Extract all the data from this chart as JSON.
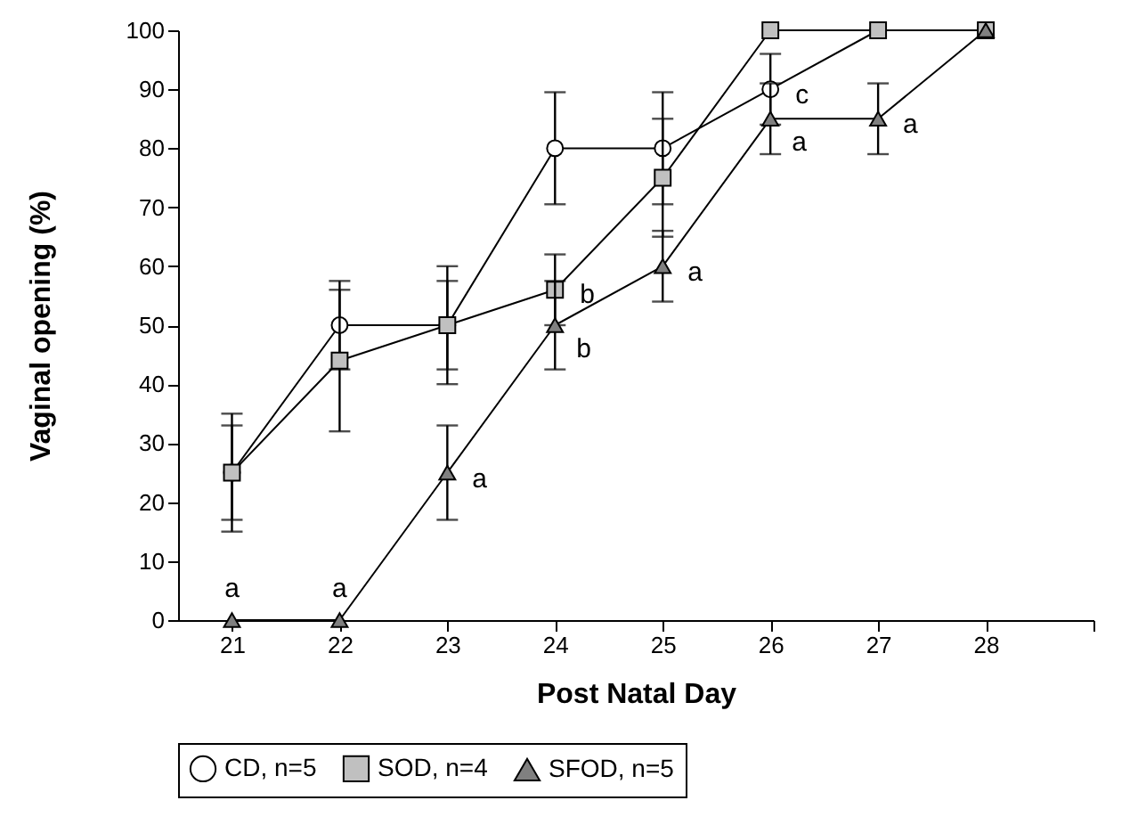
{
  "chart_data": {
    "type": "line",
    "xlabel": "Post Natal Day",
    "ylabel": "Vaginal opening (%)",
    "x": [
      21,
      22,
      23,
      24,
      25,
      26,
      27,
      28
    ],
    "series": [
      {
        "name": "CD, n=5",
        "color": "#000000",
        "colors": [
          "#ffffff",
          "#ffffff",
          "#ffffff",
          "#ffffff",
          "#ffffff",
          "#ffffff",
          "#ffffff",
          "#ffffff"
        ],
        "marker": "circle",
        "values": [
          25,
          50,
          50,
          80,
          80,
          90,
          100,
          100
        ],
        "errors": [
          10,
          7.5,
          10,
          9.5,
          9.5,
          6,
          null,
          null
        ]
      },
      {
        "name": "SOD, n=4",
        "color": "#000000",
        "colors": [
          "#c0c0c0",
          "#c0c0c0",
          "#c0c0c0",
          "#c0c0c0",
          "#c0c0c0",
          "#c0c0c0",
          "#c0c0c0",
          "#c0c0c0"
        ],
        "marker": "square",
        "values": [
          25,
          44,
          50,
          56,
          75,
          100,
          100,
          100
        ],
        "errors": [
          8,
          12,
          7.5,
          6,
          10,
          null,
          null,
          null
        ]
      },
      {
        "name": "SFOD, n=5",
        "color": "#000000",
        "colors": [
          "#808080",
          "#808080",
          "#808080",
          "#808080",
          "#808080",
          "#808080",
          "#808080",
          "#808080"
        ],
        "marker": "triangle",
        "values": [
          0,
          0,
          25,
          50,
          60,
          85,
          85,
          100
        ],
        "errors": [
          null,
          null,
          8,
          7.5,
          6,
          6,
          6,
          null
        ]
      }
    ],
    "annotations": [
      {
        "text": "a",
        "x": 21,
        "y": 0
      },
      {
        "text": "a",
        "x": 22,
        "y": 0
      },
      {
        "text": "a",
        "x": 23,
        "y": 25
      },
      {
        "text": "b",
        "x": 24,
        "y": 56.25
      },
      {
        "text": "b",
        "x": 24,
        "y": 50
      },
      {
        "text": "a",
        "x": 25,
        "y": 60
      },
      {
        "text": "c",
        "x": 26,
        "y": 90
      },
      {
        "text": "a",
        "x": 26,
        "y": 85
      },
      {
        "text": "a",
        "x": 27,
        "y": 85
      }
    ],
    "xlim": [
      20.5,
      29
    ],
    "xticks": [
      21,
      22,
      23,
      24,
      25,
      26,
      27,
      28,
      {
        "value": 29,
        "label": null
      }
    ],
    "ylim": [
      0,
      100
    ],
    "yticks": [
      0,
      10,
      20,
      30,
      40,
      50,
      60,
      70,
      80,
      90,
      100
    ],
    "grid": false,
    "legend": "bottom"
  }
}
